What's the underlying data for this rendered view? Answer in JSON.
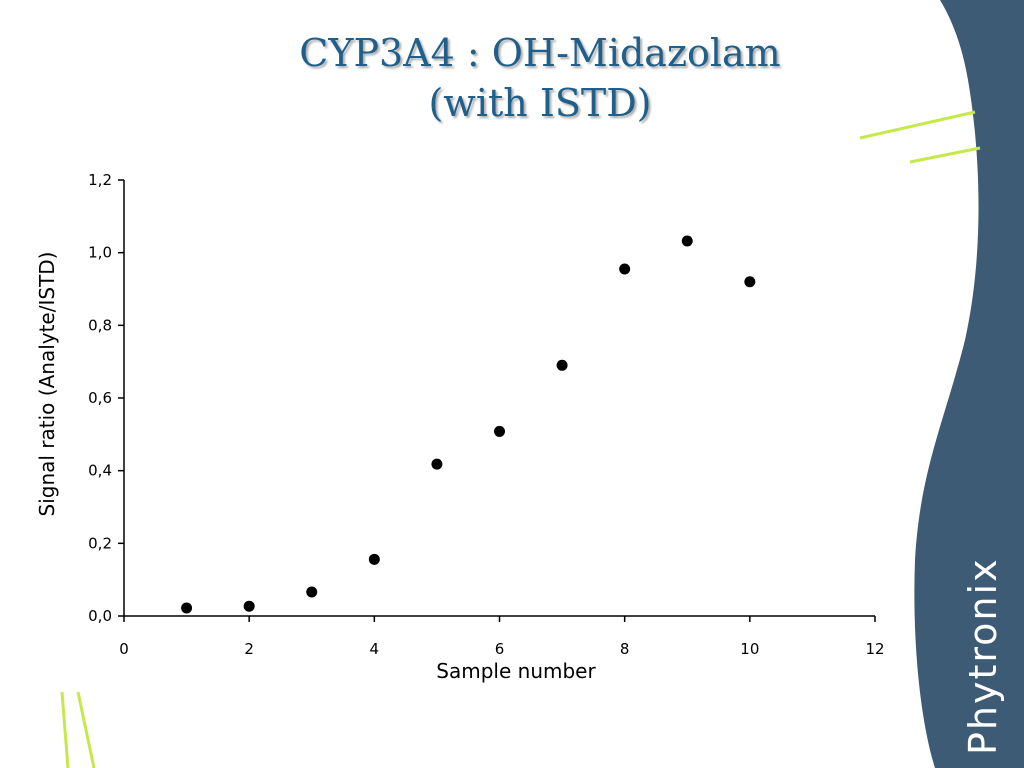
{
  "slide": {
    "title_line1": "CYP3A4 : OH-Midazolam",
    "title_line2": "(with ISTD)",
    "brand_text": "Phytronix",
    "brand_color": "#3d5b74",
    "accent_color": "#c5e84a"
  },
  "chart_data": {
    "type": "scatter",
    "title": "CYP3A4 : OH-Midazolam (with ISTD)",
    "xlabel": "Sample number",
    "ylabel": "Signal ratio (Analyte/ISTD)",
    "xlim": [
      0,
      12
    ],
    "ylim": [
      0,
      1.2
    ],
    "x_ticks": [
      "0",
      "2",
      "4",
      "6",
      "8",
      "10",
      "12"
    ],
    "y_ticks": [
      "0,0",
      "0,2",
      "0,4",
      "0,6",
      "0,8",
      "1,0",
      "1,2"
    ],
    "grid": false,
    "marker_color": "#000000",
    "series": [
      {
        "x": [
          1,
          2,
          3,
          4,
          5,
          6,
          7,
          8,
          9,
          10
        ],
        "y": [
          0.022,
          0.027,
          0.066,
          0.156,
          0.418,
          0.508,
          0.69,
          0.955,
          1.032,
          0.92
        ]
      }
    ]
  }
}
